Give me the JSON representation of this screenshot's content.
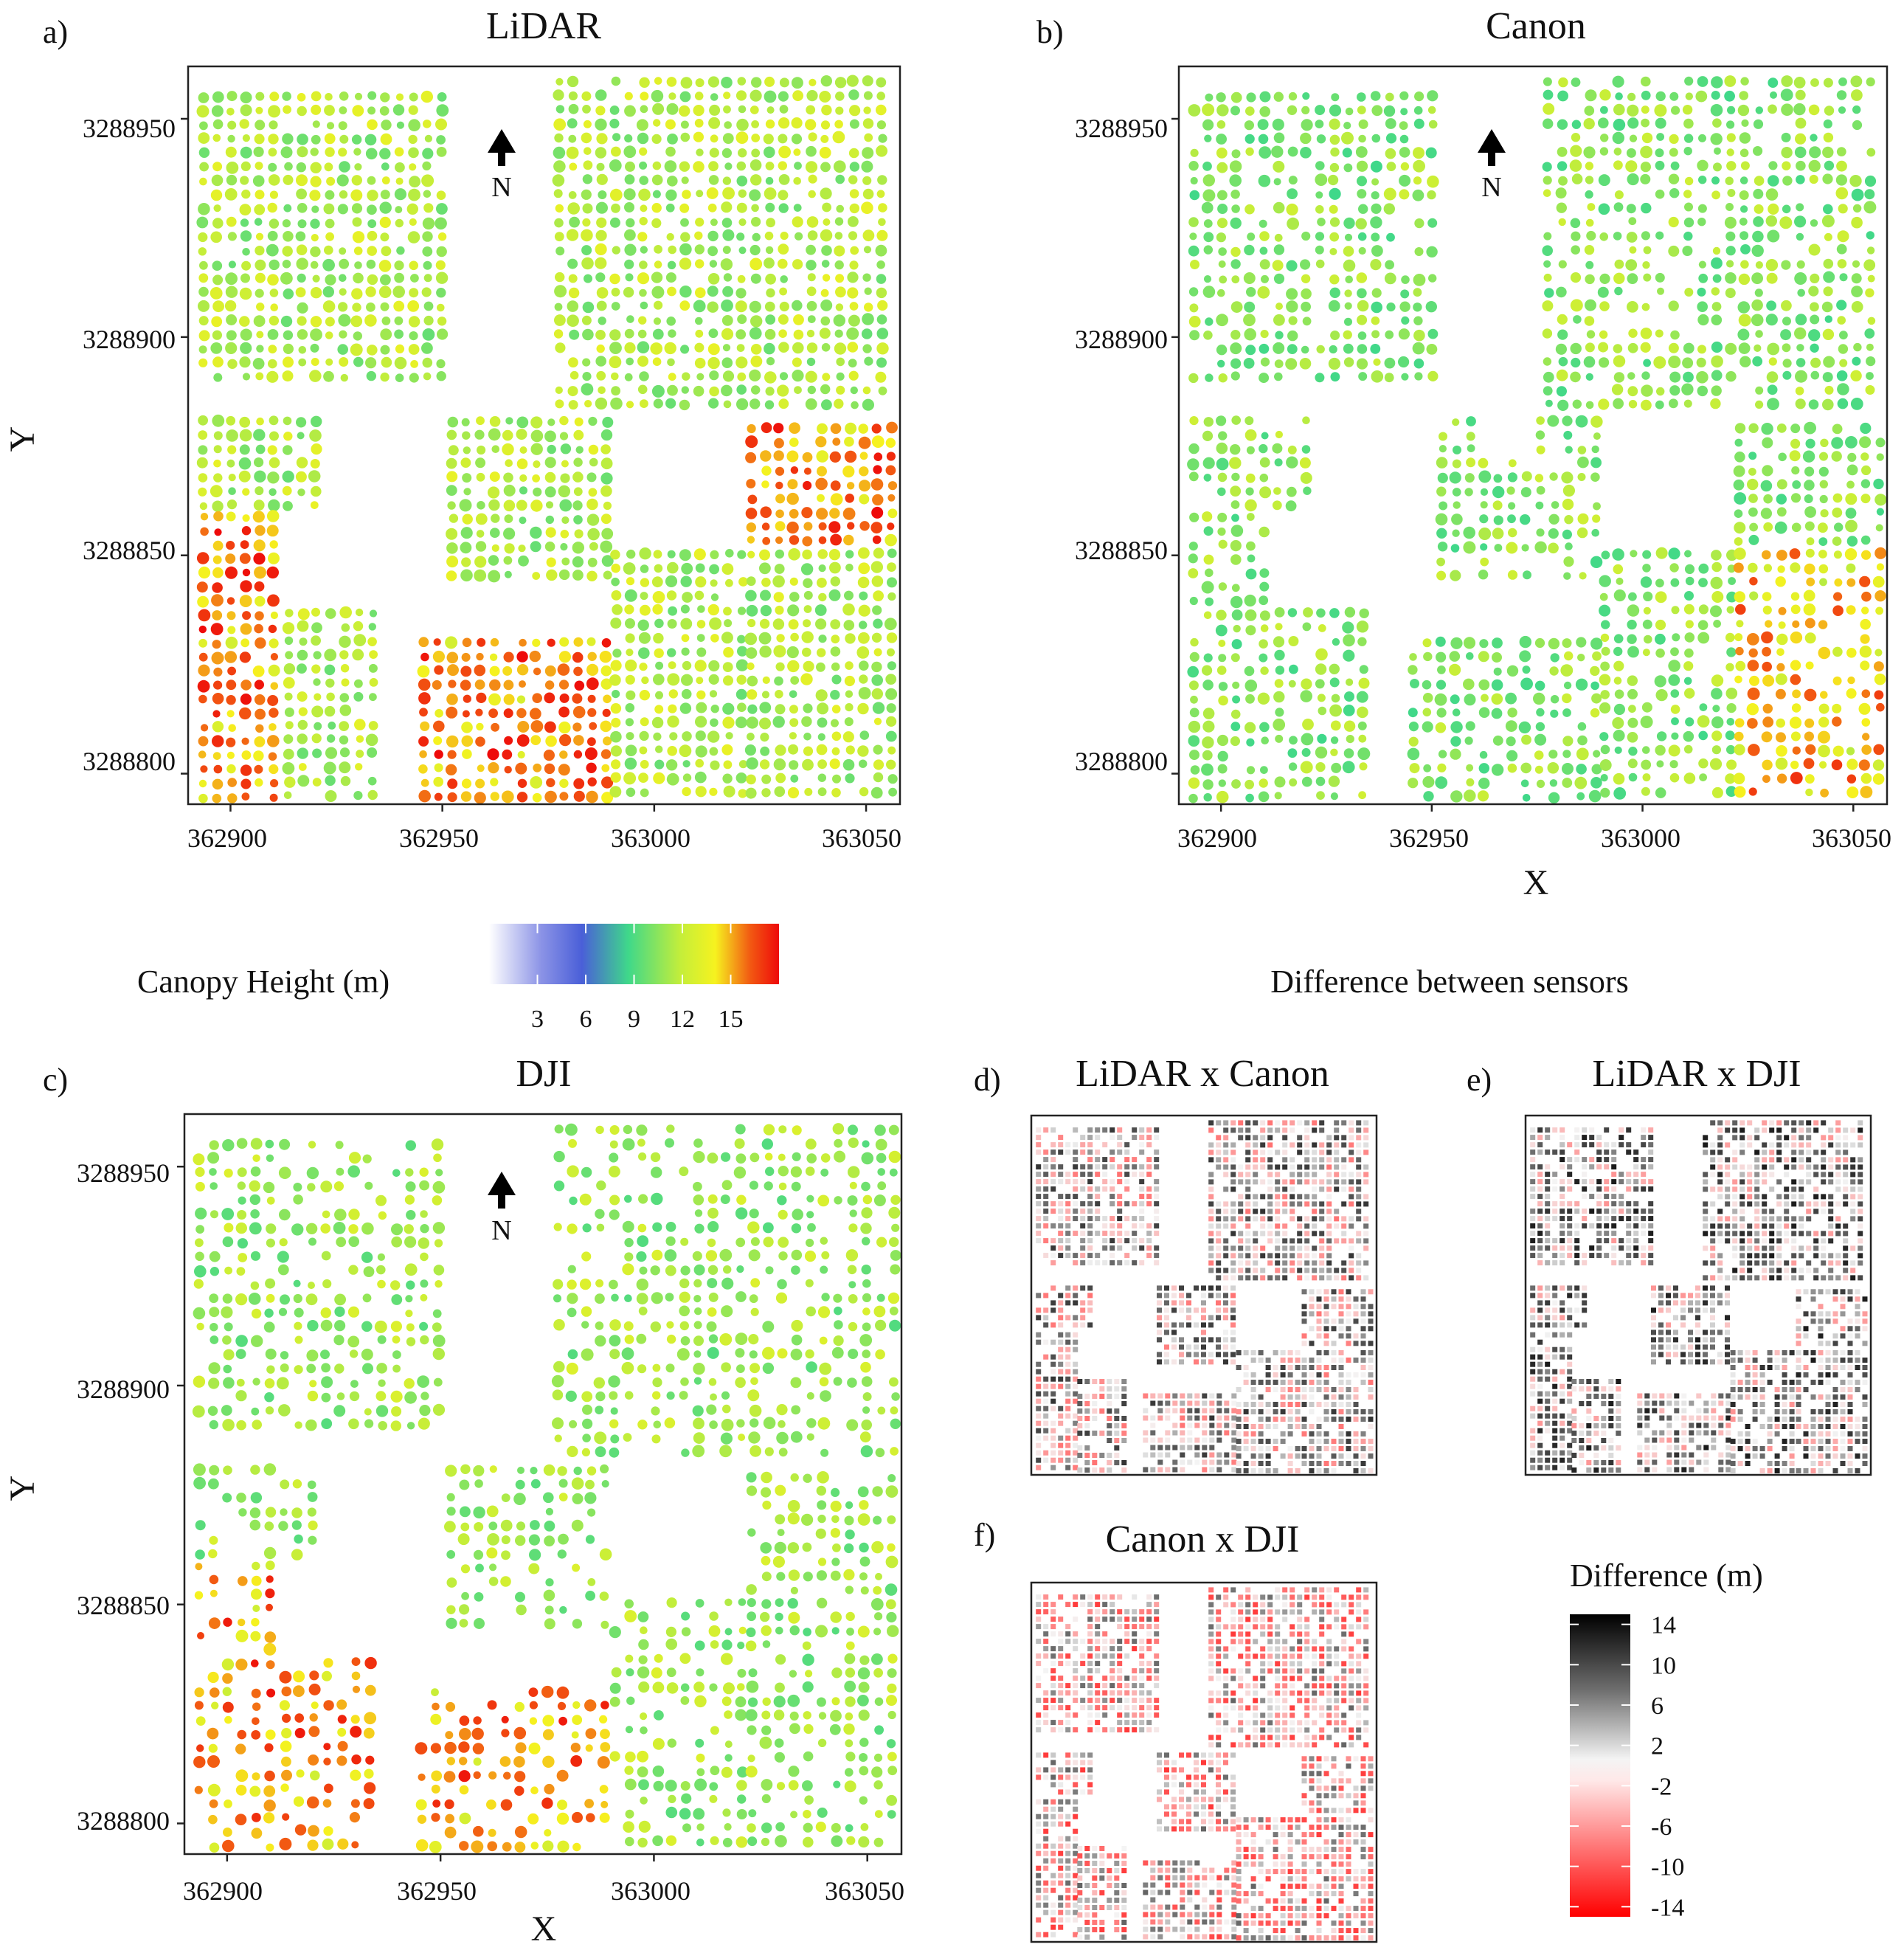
{
  "chart_data": {
    "type": "heatmap",
    "colors": {
      "canopy_scale": [
        "#ffffff",
        "#4a5fd8",
        "#3fd88a",
        "#f6f21f",
        "#f25a12",
        "#ee0a0a"
      ],
      "difference_scale": [
        "#000000",
        "#808080",
        "#ffffff",
        "#ff0000"
      ],
      "frame": "#222222"
    },
    "maps": [
      {
        "id": "a",
        "panel_label": "a)",
        "title": "LiDAR",
        "ylabel": "Y",
        "xlabel": "",
        "x_ticks": [
          "362900",
          "362950",
          "363000",
          "363050"
        ],
        "y_ticks": [
          "3288950",
          "3288900",
          "3288850",
          "3288800"
        ],
        "xlim": [
          362890,
          363058
        ],
        "ylim": [
          3288793,
          3288962
        ],
        "north_label": "N",
        "variable": "Canopy Height (m)"
      },
      {
        "id": "b",
        "panel_label": "b)",
        "title": "Canon",
        "ylabel": "",
        "xlabel": "X",
        "x_ticks": [
          "362900",
          "362950",
          "363000",
          "363050"
        ],
        "y_ticks": [
          "3288950",
          "3288900",
          "3288850",
          "3288800"
        ],
        "xlim": [
          362890,
          363058
        ],
        "ylim": [
          3288793,
          3288962
        ],
        "north_label": "N",
        "variable": "Canopy Height (m)"
      },
      {
        "id": "c",
        "panel_label": "c)",
        "title": "DJI",
        "ylabel": "Y",
        "xlabel": "X",
        "x_ticks": [
          "362900",
          "362950",
          "363000",
          "363050"
        ],
        "y_ticks": [
          "3288950",
          "3288900",
          "3288850",
          "3288800"
        ],
        "xlim": [
          362890,
          363058
        ],
        "ylim": [
          3288793,
          3288962
        ],
        "north_label": "N",
        "variable": "Canopy Height (m)"
      }
    ],
    "difference_maps": [
      {
        "id": "d",
        "panel_label": "d)",
        "title": "LiDAR x Canon"
      },
      {
        "id": "e",
        "panel_label": "e)",
        "title": "LiDAR x DJI"
      },
      {
        "id": "f",
        "panel_label": "f)",
        "title": "Canon x DJI"
      }
    ],
    "difference_heading": "Difference between sensors",
    "canopy_legend": {
      "title": "Canopy Height (m)",
      "ticks": [
        "3",
        "6",
        "9",
        "12",
        "15"
      ],
      "tick_values": [
        3,
        6,
        9,
        12,
        15
      ],
      "range": [
        0,
        18
      ]
    },
    "difference_legend": {
      "title": "Difference (m)",
      "ticks": [
        "14",
        "10",
        "6",
        "2",
        "-2",
        "-6",
        "-10",
        "-14"
      ],
      "range": [
        -15,
        15
      ]
    }
  }
}
